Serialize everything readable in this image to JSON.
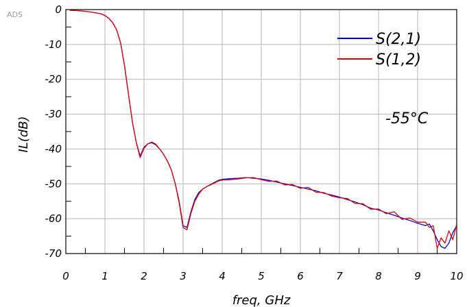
{
  "watermark": "ADS",
  "chart_data": {
    "type": "line",
    "xlabel": "freq, GHz",
    "ylabel": "IL(dB)",
    "xlim": [
      0,
      10
    ],
    "ylim": [
      -70,
      0
    ],
    "xticks": [
      "0",
      "1",
      "2",
      "3",
      "4",
      "5",
      "6",
      "7",
      "8",
      "9",
      "10"
    ],
    "yticks": [
      "0",
      "-10",
      "-20",
      "-30",
      "-40",
      "-50",
      "-60",
      "-70"
    ],
    "grid": true,
    "legend_position": "top-right",
    "annotation": "-55°C",
    "series": [
      {
        "name": "S(2,1)",
        "color": "#0000dd",
        "x": [
          0.1,
          0.3,
          0.5,
          0.7,
          0.9,
          1.0,
          1.1,
          1.2,
          1.3,
          1.4,
          1.5,
          1.6,
          1.7,
          1.8,
          1.9,
          2.0,
          2.1,
          2.2,
          2.3,
          2.4,
          2.5,
          2.6,
          2.7,
          2.8,
          2.9,
          3.0,
          3.1,
          3.2,
          3.3,
          3.4,
          3.5,
          3.6,
          3.7,
          3.8,
          3.9,
          4.0,
          4.2,
          4.4,
          4.6,
          4.8,
          5.0,
          5.2,
          5.4,
          5.6,
          5.8,
          6.0,
          6.2,
          6.4,
          6.6,
          6.8,
          7.0,
          7.2,
          7.4,
          7.6,
          7.8,
          8.0,
          8.2,
          8.4,
          8.6,
          8.8,
          9.0,
          9.2,
          9.3,
          9.4,
          9.5,
          9.6,
          9.7,
          9.8,
          9.9,
          10.0
        ],
        "y": [
          -0.2,
          -0.3,
          -0.5,
          -0.8,
          -1.2,
          -1.7,
          -2.5,
          -3.8,
          -5.8,
          -9.5,
          -16,
          -24,
          -32,
          -38,
          -42,
          -39.5,
          -38.5,
          -38.2,
          -38.8,
          -40,
          -41.5,
          -43.5,
          -46,
          -50,
          -55,
          -62,
          -62.5,
          -58,
          -54.5,
          -52.5,
          -51.5,
          -50.8,
          -50.2,
          -49.6,
          -49.0,
          -48.7,
          -48.5,
          -48.4,
          -48.2,
          -48.4,
          -48.6,
          -49.0,
          -49.5,
          -50.0,
          -50.5,
          -51.0,
          -51.5,
          -52.0,
          -52.7,
          -53.2,
          -53.8,
          -54.5,
          -55.2,
          -56.0,
          -57.0,
          -57.5,
          -58.3,
          -59.0,
          -59.8,
          -60.5,
          -61.3,
          -62.0,
          -61.5,
          -63.5,
          -66.0,
          -68.0,
          -68.5,
          -67.0,
          -64.0,
          -62.0
        ]
      },
      {
        "name": "S(1,2)",
        "color": "#dd0000",
        "x": [
          0.1,
          0.3,
          0.5,
          0.7,
          0.9,
          1.0,
          1.1,
          1.2,
          1.3,
          1.4,
          1.5,
          1.6,
          1.7,
          1.8,
          1.9,
          2.0,
          2.1,
          2.2,
          2.3,
          2.4,
          2.5,
          2.6,
          2.7,
          2.8,
          2.9,
          3.0,
          3.1,
          3.2,
          3.3,
          3.4,
          3.5,
          3.6,
          3.7,
          3.8,
          3.9,
          4.0,
          4.2,
          4.4,
          4.6,
          4.8,
          5.0,
          5.2,
          5.4,
          5.6,
          5.8,
          6.0,
          6.2,
          6.4,
          6.6,
          6.8,
          7.0,
          7.2,
          7.4,
          7.6,
          7.8,
          8.0,
          8.2,
          8.4,
          8.6,
          8.8,
          9.0,
          9.2,
          9.3,
          9.4,
          9.5,
          9.6,
          9.7,
          9.8,
          9.9,
          10.0
        ],
        "y": [
          -0.2,
          -0.3,
          -0.5,
          -0.8,
          -1.2,
          -1.7,
          -2.5,
          -3.8,
          -5.8,
          -9.5,
          -16,
          -24,
          -32,
          -38,
          -42.5,
          -39.8,
          -38.5,
          -38.0,
          -38.6,
          -40,
          -41.5,
          -43.5,
          -46,
          -50,
          -55.5,
          -62.5,
          -63.2,
          -58.5,
          -55,
          -53,
          -51.5,
          -50.8,
          -50.3,
          -49.8,
          -49.2,
          -48.9,
          -48.8,
          -48.6,
          -48.3,
          -48.2,
          -48.8,
          -49.3,
          -49.2,
          -50.3,
          -50.2,
          -51.3,
          -51.0,
          -52.4,
          -52.5,
          -53.5,
          -54.0,
          -54.2,
          -55.6,
          -55.7,
          -57.3,
          -57.2,
          -58.6,
          -58.0,
          -60.2,
          -59.8,
          -61.0,
          -61.0,
          -62.5,
          -62.0,
          -68.5,
          -65.5,
          -67.0,
          -63.5,
          -66.0,
          -61.5
        ]
      }
    ]
  }
}
